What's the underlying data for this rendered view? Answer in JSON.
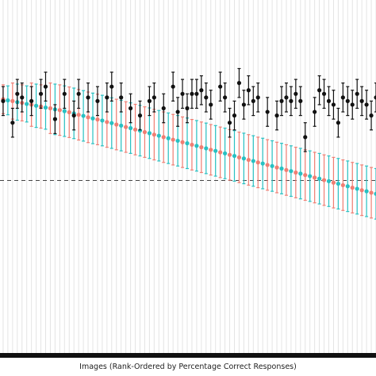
{
  "chart_data": {
    "type": "scatter",
    "title": "",
    "xlabel": "Images (Rank-Ordered by Percentage Correct Responses)",
    "ylabel": "",
    "xlim": [
      0,
      80
    ],
    "ylim": [
      0,
      1
    ],
    "grid": true,
    "reference_line_y": 0.5,
    "colors": {
      "black": "#111111",
      "coral": "#f07e73",
      "teal": "#28c0c2",
      "ref_line": "#444444",
      "grid": "#e4e4e4"
    },
    "series": [
      {
        "color": "#f07e73",
        "style": "points_with_error_bars",
        "x": [
          1,
          3,
          5,
          7,
          9,
          11,
          13,
          15,
          17,
          19,
          21,
          23,
          25,
          27,
          29,
          31,
          33,
          35,
          37,
          39,
          41,
          43,
          45,
          47,
          49,
          51,
          53,
          55,
          57,
          59,
          61,
          63,
          65,
          67,
          69,
          71,
          73,
          75,
          77,
          79
        ],
        "y": [
          0.725,
          0.72,
          0.715,
          0.71,
          0.705,
          0.7,
          0.695,
          0.689,
          0.682,
          0.675,
          0.669,
          0.662,
          0.655,
          0.648,
          0.641,
          0.634,
          0.627,
          0.62,
          0.613,
          0.606,
          0.599,
          0.592,
          0.585,
          0.578,
          0.571,
          0.564,
          0.557,
          0.55,
          0.543,
          0.536,
          0.529,
          0.522,
          0.515,
          0.508,
          0.501,
          0.494,
          0.487,
          0.48,
          0.473,
          0.466
        ],
        "err": [
          0.04,
          0.05,
          0.05,
          0.06,
          0.06,
          0.07,
          0.07,
          0.07,
          0.07,
          0.07,
          0.07,
          0.07,
          0.07,
          0.07,
          0.07,
          0.07,
          0.07,
          0.07,
          0.07,
          0.07,
          0.07,
          0.07,
          0.07,
          0.07,
          0.07,
          0.07,
          0.07,
          0.07,
          0.07,
          0.07,
          0.07,
          0.07,
          0.07,
          0.07,
          0.07,
          0.07,
          0.07,
          0.07,
          0.07,
          0.07
        ]
      },
      {
        "color": "#28c0c2",
        "style": "points_with_error_bars",
        "x": [
          2,
          4,
          6,
          8,
          10,
          12,
          14,
          16,
          18,
          20,
          22,
          24,
          26,
          28,
          30,
          32,
          34,
          36,
          38,
          40,
          42,
          44,
          46,
          48,
          50,
          52,
          54,
          56,
          58,
          60,
          62,
          64,
          66,
          68,
          70,
          72,
          74,
          76,
          78,
          80
        ],
        "y": [
          0.722,
          0.717,
          0.712,
          0.707,
          0.702,
          0.697,
          0.692,
          0.686,
          0.679,
          0.672,
          0.666,
          0.659,
          0.652,
          0.645,
          0.638,
          0.631,
          0.624,
          0.617,
          0.61,
          0.603,
          0.596,
          0.589,
          0.582,
          0.575,
          0.568,
          0.561,
          0.554,
          0.547,
          0.54,
          0.533,
          0.526,
          0.519,
          0.512,
          0.505,
          0.498,
          0.491,
          0.484,
          0.477,
          0.47,
          0.463
        ],
        "err": [
          0.04,
          0.05,
          0.05,
          0.06,
          0.06,
          0.07,
          0.07,
          0.07,
          0.07,
          0.07,
          0.07,
          0.07,
          0.07,
          0.07,
          0.07,
          0.07,
          0.07,
          0.07,
          0.07,
          0.07,
          0.07,
          0.07,
          0.07,
          0.07,
          0.07,
          0.07,
          0.07,
          0.07,
          0.07,
          0.07,
          0.07,
          0.07,
          0.07,
          0.07,
          0.07,
          0.07,
          0.07,
          0.07,
          0.07,
          0.07
        ]
      },
      {
        "color": "#111111",
        "style": "points_with_error_bars",
        "x": [
          1,
          3,
          4,
          5,
          7,
          9,
          10,
          12,
          14,
          16,
          17,
          19,
          21,
          23,
          24,
          26,
          28,
          30,
          32,
          33,
          35,
          37,
          38,
          39,
          40,
          41,
          42,
          43,
          44,
          45,
          47,
          48,
          49,
          50,
          51,
          52,
          53,
          54,
          55,
          57,
          59,
          60,
          61,
          62,
          63,
          64,
          65,
          67,
          68,
          69,
          70,
          71,
          72,
          73,
          74,
          75,
          76,
          77,
          78,
          79,
          80
        ],
        "y": [
          0.72,
          0.66,
          0.74,
          0.73,
          0.72,
          0.74,
          0.76,
          0.67,
          0.74,
          0.68,
          0.74,
          0.73,
          0.72,
          0.73,
          0.76,
          0.73,
          0.7,
          0.68,
          0.72,
          0.73,
          0.7,
          0.76,
          0.69,
          0.74,
          0.7,
          0.74,
          0.74,
          0.75,
          0.73,
          0.71,
          0.76,
          0.73,
          0.66,
          0.68,
          0.77,
          0.71,
          0.75,
          0.72,
          0.73,
          0.69,
          0.68,
          0.72,
          0.73,
          0.72,
          0.74,
          0.72,
          0.62,
          0.69,
          0.75,
          0.74,
          0.72,
          0.71,
          0.66,
          0.73,
          0.72,
          0.71,
          0.74,
          0.72,
          0.71,
          0.68,
          0.73
        ],
        "err": [
          0.04,
          0.04,
          0.04,
          0.04,
          0.04,
          0.04,
          0.04,
          0.04,
          0.04,
          0.04,
          0.04,
          0.04,
          0.04,
          0.04,
          0.04,
          0.04,
          0.04,
          0.04,
          0.04,
          0.04,
          0.04,
          0.04,
          0.04,
          0.04,
          0.04,
          0.04,
          0.04,
          0.04,
          0.04,
          0.04,
          0.04,
          0.04,
          0.04,
          0.04,
          0.04,
          0.04,
          0.04,
          0.04,
          0.04,
          0.04,
          0.04,
          0.04,
          0.04,
          0.04,
          0.04,
          0.04,
          0.04,
          0.04,
          0.04,
          0.04,
          0.04,
          0.04,
          0.04,
          0.04,
          0.04,
          0.04,
          0.04,
          0.04,
          0.04,
          0.04,
          0.04
        ]
      }
    ]
  }
}
